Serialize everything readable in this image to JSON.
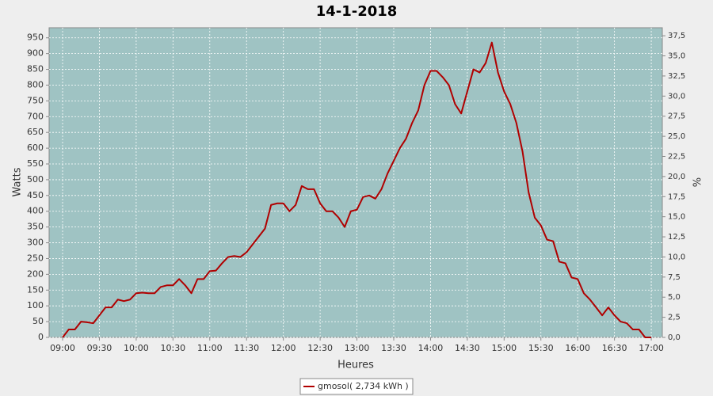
{
  "chart_data": {
    "type": "line",
    "title": "14-1-2018",
    "x_label": "Heures",
    "y_label": "Watts",
    "y2_label": "%",
    "x": [
      "09:00",
      "09:05",
      "09:10",
      "09:15",
      "09:20",
      "09:25",
      "09:30",
      "09:35",
      "09:40",
      "09:45",
      "09:50",
      "09:55",
      "10:00",
      "10:05",
      "10:10",
      "10:15",
      "10:20",
      "10:25",
      "10:30",
      "10:35",
      "10:40",
      "10:45",
      "10:50",
      "10:55",
      "11:00",
      "11:05",
      "11:10",
      "11:15",
      "11:20",
      "11:25",
      "11:30",
      "11:35",
      "11:40",
      "11:45",
      "11:50",
      "11:55",
      "12:00",
      "12:05",
      "12:10",
      "12:15",
      "12:20",
      "12:25",
      "12:30",
      "12:35",
      "12:40",
      "12:45",
      "12:50",
      "12:55",
      "13:00",
      "13:05",
      "13:10",
      "13:15",
      "13:20",
      "13:25",
      "13:30",
      "13:35",
      "13:40",
      "13:45",
      "13:50",
      "13:55",
      "14:00",
      "14:05",
      "14:10",
      "14:15",
      "14:20",
      "14:25",
      "14:30",
      "14:35",
      "14:40",
      "14:45",
      "14:50",
      "14:55",
      "15:00",
      "15:05",
      "15:10",
      "15:15",
      "15:20",
      "15:25",
      "15:30",
      "15:35",
      "15:40",
      "15:45",
      "15:50",
      "15:55",
      "16:00",
      "16:05",
      "16:10",
      "16:15",
      "16:20",
      "16:25",
      "16:30",
      "16:35",
      "16:40",
      "16:45",
      "16:50",
      "16:55",
      "17:00"
    ],
    "series": [
      {
        "name": "gmosol( 2,734 kWh )",
        "color": "#b00000",
        "values": [
          0,
          25,
          25,
          50,
          48,
          45,
          70,
          95,
          95,
          120,
          115,
          120,
          140,
          142,
          140,
          140,
          160,
          165,
          165,
          185,
          165,
          140,
          185,
          185,
          210,
          212,
          235,
          255,
          258,
          255,
          270,
          295,
          320,
          345,
          420,
          425,
          425,
          400,
          420,
          480,
          470,
          470,
          425,
          400,
          400,
          380,
          350,
          400,
          405,
          445,
          450,
          440,
          470,
          520,
          560,
          600,
          630,
          680,
          720,
          800,
          845,
          845,
          825,
          800,
          740,
          710,
          780,
          850,
          840,
          870,
          935,
          840,
          780,
          740,
          680,
          590,
          460,
          380,
          355,
          310,
          305,
          240,
          235,
          190,
          185,
          140,
          120,
          95,
          70,
          95,
          70,
          50,
          45,
          25,
          25,
          0,
          0
        ]
      }
    ],
    "xlim": [
      "08:49",
      "17:09"
    ],
    "xticks": [
      "09:00",
      "09:30",
      "10:00",
      "10:30",
      "11:00",
      "11:30",
      "12:00",
      "12:30",
      "13:00",
      "13:30",
      "14:00",
      "14:30",
      "15:00",
      "15:30",
      "16:00",
      "16:30",
      "17:00"
    ],
    "ylim": [
      0,
      982
    ],
    "yticks": [
      0,
      50,
      100,
      150,
      200,
      250,
      300,
      350,
      400,
      450,
      500,
      550,
      600,
      650,
      700,
      750,
      800,
      850,
      900,
      950
    ],
    "y2lim": [
      0,
      38.5
    ],
    "y2ticks": [
      {
        "value": 0,
        "label": "0,0"
      },
      {
        "value": 2.5,
        "label": "2,5"
      },
      {
        "value": 5,
        "label": "5,0"
      },
      {
        "value": 7.5,
        "label": "7,5"
      },
      {
        "value": 10,
        "label": "10,0"
      },
      {
        "value": 12.5,
        "label": "12,5"
      },
      {
        "value": 15,
        "label": "15,0"
      },
      {
        "value": 17.5,
        "label": "17,5"
      },
      {
        "value": 20,
        "label": "20,0"
      },
      {
        "value": 22.5,
        "label": "22,5"
      },
      {
        "value": 25,
        "label": "25,0"
      },
      {
        "value": 27.5,
        "label": "27,5"
      },
      {
        "value": 30,
        "label": "30,0"
      },
      {
        "value": 32.5,
        "label": "32,5"
      },
      {
        "value": 35,
        "label": "35,0"
      },
      {
        "value": 37.5,
        "label": "37,5"
      }
    ],
    "grid": true,
    "plot_background": "#9fc3c3",
    "legend_position": "bottom"
  }
}
